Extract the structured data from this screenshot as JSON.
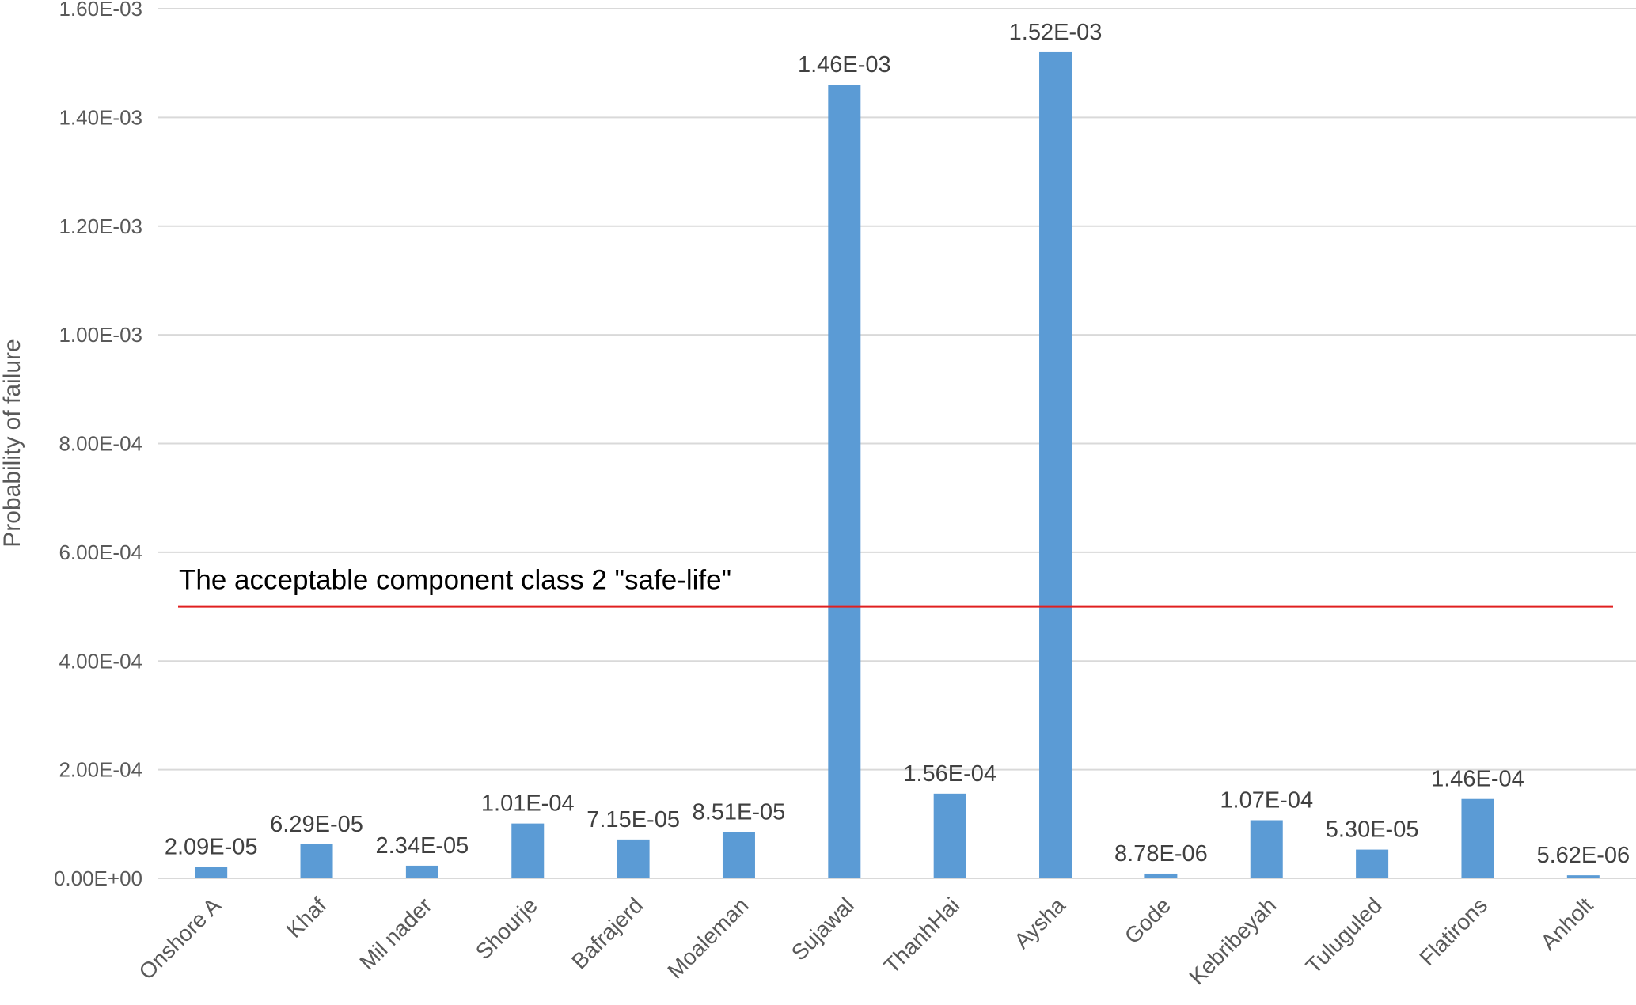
{
  "chart_data": {
    "type": "bar",
    "title": "",
    "xlabel": "",
    "ylabel": "Probability of failure",
    "ylim": [
      0,
      0.0016
    ],
    "y_ticks": [
      "0.00E+00",
      "2.00E-04",
      "4.00E-04",
      "6.00E-04",
      "8.00E-04",
      "1.00E-03",
      "1.20E-03",
      "1.40E-03",
      "1.60E-03"
    ],
    "grid": true,
    "legend": "none",
    "categories": [
      "Onshore A",
      "Khaf",
      "Mil nader",
      "Shourje",
      "Bafrajerd",
      "Moaleman",
      "Sujawal",
      "ThanhHai",
      "Aysha",
      "Gode",
      "Kebribeyah",
      "Tuluguled",
      "Flatirons",
      "Anholt"
    ],
    "values": [
      2.09e-05,
      6.29e-05,
      2.34e-05,
      0.000101,
      7.15e-05,
      8.51e-05,
      0.00146,
      0.000156,
      0.00152,
      8.78e-06,
      0.000107,
      5.3e-05,
      0.000146,
      5.62e-06
    ],
    "data_labels": [
      "2.09E-05",
      "6.29E-05",
      "2.34E-05",
      "1.01E-04",
      "7.15E-05",
      "8.51E-05",
      "1.46E-03",
      "1.56E-04",
      "1.52E-03",
      "8.78E-06",
      "1.07E-04",
      "5.30E-05",
      "1.46E-04",
      "5.62E-06"
    ],
    "threshold": {
      "value": 0.0005,
      "label": "The acceptable component class 2 \"safe-life\"",
      "color": "#e02020"
    },
    "bar_color": "#5b9bd5",
    "grid_color": "#d9d9d9"
  }
}
